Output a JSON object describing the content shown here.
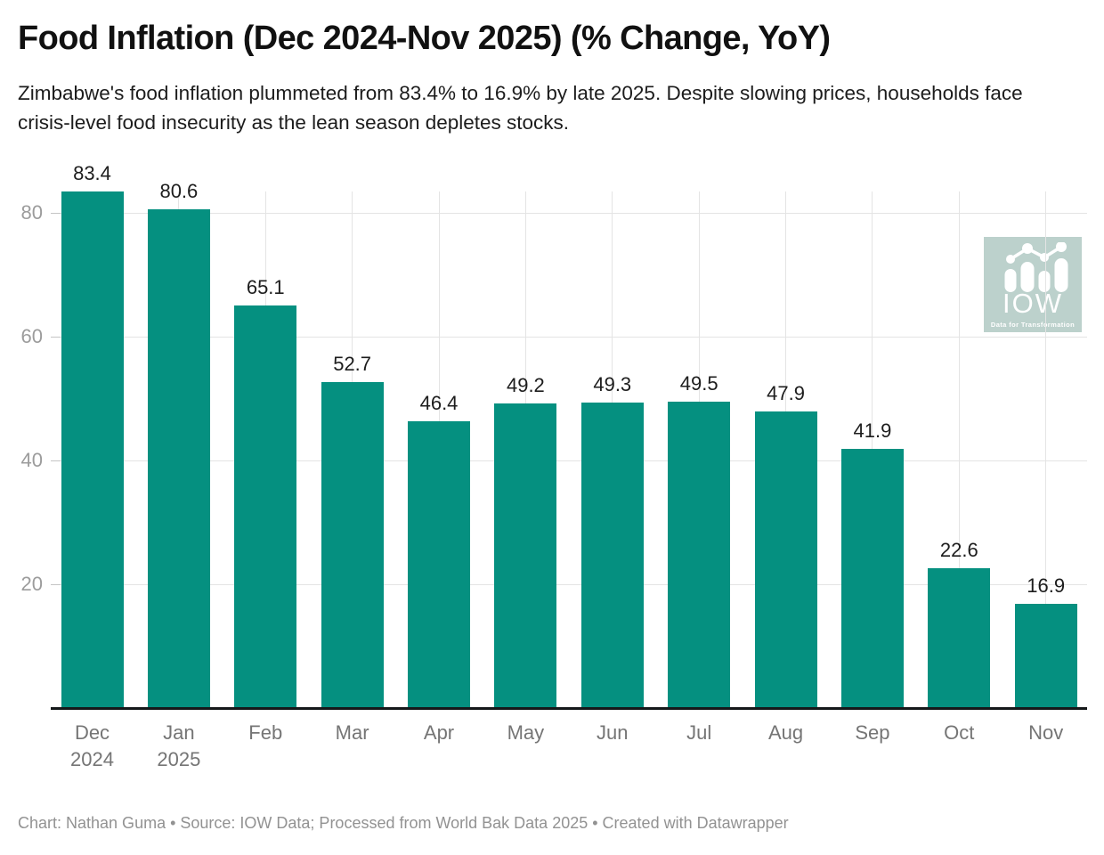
{
  "header": {
    "title": "Food Inflation (Dec 2024-Nov 2025) (% Change, YoY)",
    "subtitle": "Zimbabwe's food inflation plummeted from 83.4% to 16.9% by late 2025. Despite slowing prices, households face crisis-level food insecurity as the lean season depletes stocks."
  },
  "chart_data": {
    "type": "bar",
    "title": "Food Inflation (Dec 2024-Nov 2025) (% Change, YoY)",
    "categories": [
      [
        "Dec",
        "2024"
      ],
      [
        "Jan",
        "2025"
      ],
      [
        "Feb"
      ],
      [
        "Mar"
      ],
      [
        "Apr"
      ],
      [
        "May"
      ],
      [
        "Jun"
      ],
      [
        "Jul"
      ],
      [
        "Aug"
      ],
      [
        "Sep"
      ],
      [
        "Oct"
      ],
      [
        "Nov"
      ]
    ],
    "values": [
      83.4,
      80.6,
      65.1,
      52.7,
      46.4,
      49.2,
      49.3,
      49.5,
      47.9,
      41.9,
      22.6,
      16.9
    ],
    "xlabel": "",
    "ylabel": "",
    "yticks": [
      20,
      40,
      60,
      80
    ],
    "ylim": [
      0,
      85.5
    ],
    "grid": true,
    "legend": false,
    "value_labels": true
  },
  "colors": {
    "bar": "#059080",
    "grid": "#e4e4e4",
    "axis": "#15181a",
    "value_label": "#1d1d1d",
    "tick_label": "#9c9c9c",
    "logo_bg": "#b8cec9"
  },
  "logo": {
    "text": "IOW",
    "tagline": "Data for Transformation"
  },
  "footer": {
    "text": "Chart: Nathan Guma • Source: IOW Data; Processed from World Bak Data 2025 • Created with Datawrapper"
  }
}
